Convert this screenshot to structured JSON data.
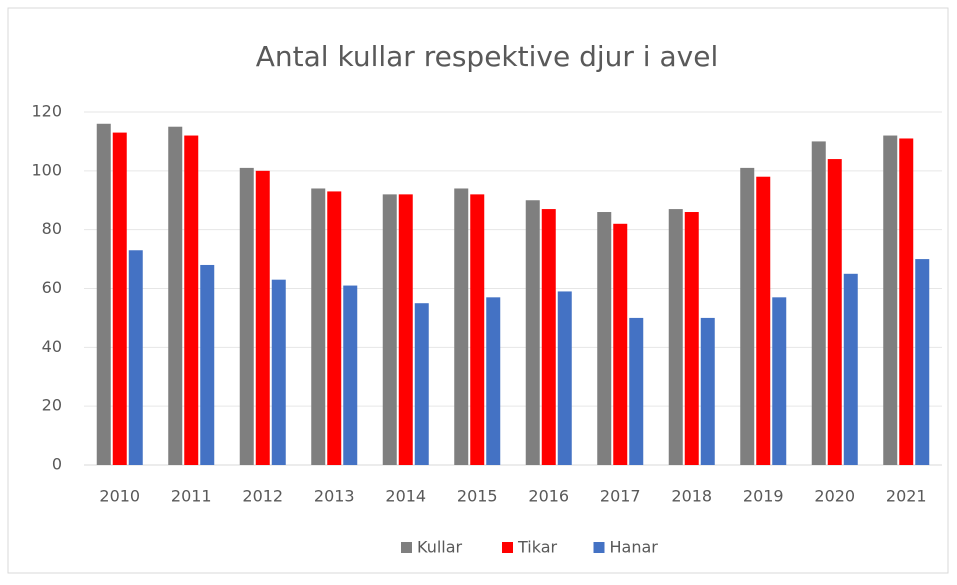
{
  "chart_data": {
    "type": "bar",
    "title": "Antal kullar respektive djur i avel",
    "categories": [
      "2010",
      "2011",
      "2012",
      "2013",
      "2014",
      "2015",
      "2016",
      "2017",
      "2018",
      "2019",
      "2020",
      "2021"
    ],
    "series": [
      {
        "name": "Kullar",
        "color": "#7f7f7f",
        "values": [
          116,
          115,
          101,
          94,
          92,
          94,
          90,
          86,
          87,
          101,
          110,
          112
        ]
      },
      {
        "name": "Tikar",
        "color": "#ff0000",
        "values": [
          113,
          112,
          100,
          93,
          92,
          92,
          87,
          82,
          86,
          98,
          104,
          111
        ]
      },
      {
        "name": "Hanar",
        "color": "#4472c4",
        "values": [
          73,
          68,
          63,
          61,
          55,
          57,
          59,
          50,
          50,
          57,
          65,
          70
        ]
      }
    ],
    "ylim": [
      0,
      120
    ],
    "yticks": [
      0,
      20,
      40,
      60,
      80,
      100,
      120
    ],
    "grid": true,
    "legend": "bottom"
  }
}
